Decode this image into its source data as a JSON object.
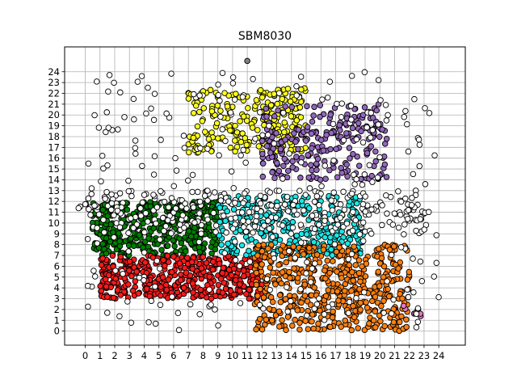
{
  "chart_data": {
    "type": "scatter",
    "title": "SBM8030",
    "xlabel": "",
    "ylabel": "",
    "xlim": [
      -1.4,
      25.8
    ],
    "ylim": [
      -1.3,
      26.3
    ],
    "xticks": [
      0,
      1,
      2,
      3,
      4,
      5,
      6,
      7,
      8,
      9,
      10,
      11,
      12,
      13,
      14,
      15,
      16,
      17,
      18,
      19,
      20,
      21,
      22,
      23,
      24
    ],
    "yticks": [
      0,
      1,
      2,
      3,
      4,
      5,
      6,
      7,
      8,
      9,
      10,
      11,
      12,
      13,
      14,
      15,
      16,
      17,
      18,
      19,
      20,
      21,
      22,
      23,
      24
    ],
    "grid": true,
    "legend": "none",
    "marker_edge_color": "#000000",
    "series": [
      {
        "color": "#ffff1a",
        "region": {
          "x": [
            7,
            15
          ],
          "y": [
            16.5,
            22.5
          ]
        },
        "density": 5
      },
      {
        "color": "#9467bd",
        "region": {
          "x": [
            12,
            20.5
          ],
          "y": [
            14,
            21
          ]
        },
        "density": 4
      },
      {
        "color": "#008000",
        "region": {
          "x": [
            0.5,
            9
          ],
          "y": [
            7,
            12
          ]
        },
        "density": 10
      },
      {
        "color": "#ff1a1a",
        "region": {
          "x": [
            1,
            12
          ],
          "y": [
            3,
            7
          ]
        },
        "density": 10
      },
      {
        "color": "#1ae6e6",
        "region": {
          "x": [
            9,
            19
          ],
          "y": [
            7,
            12.5
          ]
        },
        "density": 6
      },
      {
        "color": "#ff7f0e",
        "region": {
          "x": [
            11.5,
            22
          ],
          "y": [
            0,
            8
          ]
        },
        "density": 6
      },
      {
        "color": "#e377c2",
        "region": {
          "x": [
            21.5,
            25
          ],
          "y": [
            0.5,
            2.5
          ]
        },
        "density": 1
      },
      {
        "color": "#ffffff",
        "region": {
          "x": [
            -0.5,
            24
          ],
          "y": [
            0,
            24.5
          ]
        },
        "density": 1,
        "scatter_edge": true
      },
      {
        "color": "#7f7f7f",
        "points": [
          [
            11,
            25
          ]
        ]
      }
    ]
  }
}
